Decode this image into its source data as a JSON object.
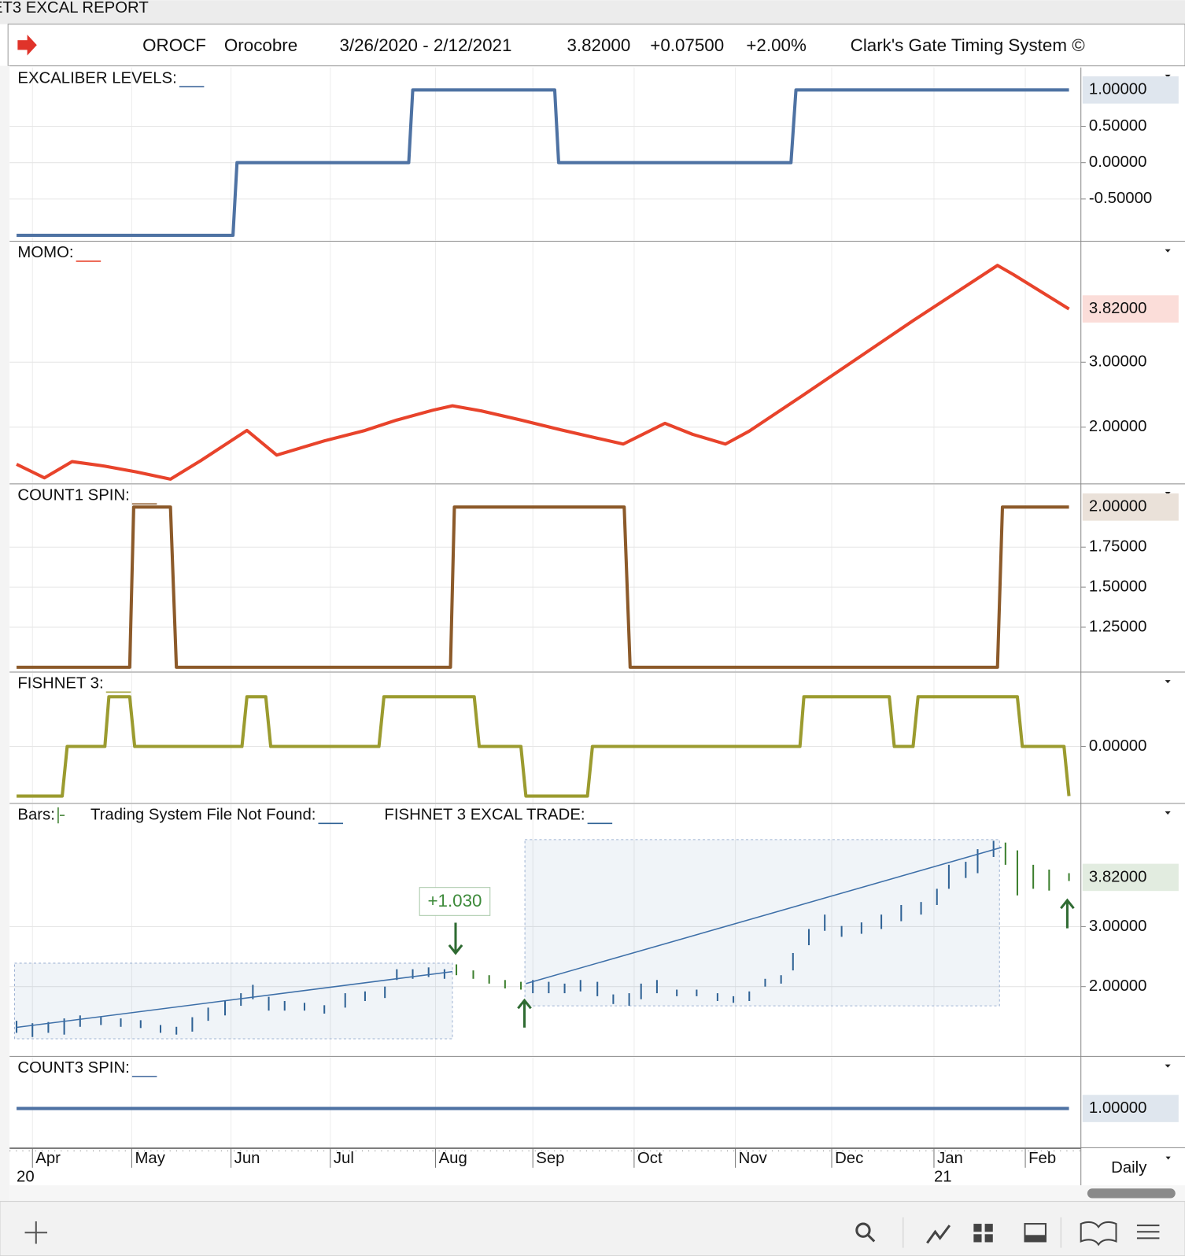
{
  "window_title": "ET3 EXCAL REPORT",
  "header": {
    "symbol": "OROCF",
    "name": "Orocobre",
    "date_range": "3/26/2020 - 2/12/2021",
    "last": "3.82000",
    "change": "+0.07500",
    "change_pct": "+2.00%",
    "system": "Clark's Gate Timing System ©"
  },
  "x_axis": {
    "xlim": [
      -0.23,
      10.56
    ],
    "xticks": [
      {
        "value": 0,
        "label": "Apr"
      },
      {
        "value": 1.0,
        "label": "May"
      },
      {
        "value": 2.0,
        "label": "Jun"
      },
      {
        "value": 3.0,
        "label": "Jul"
      },
      {
        "value": 4.06,
        "label": "Aug"
      },
      {
        "value": 5.04,
        "label": "Sep"
      },
      {
        "value": 6.06,
        "label": "Oct"
      },
      {
        "value": 7.08,
        "label": "Nov"
      },
      {
        "value": 8.05,
        "label": "Dec"
      },
      {
        "value": 9.08,
        "label": "Jan"
      },
      {
        "value": 10.0,
        "label": "Feb"
      }
    ],
    "years": [
      {
        "value": -0.16,
        "label": "20"
      },
      {
        "value": 9.08,
        "label": "21"
      }
    ],
    "interval": "Daily"
  },
  "chart_data": [
    {
      "type": "line",
      "titles": [
        "EXCALIBER LEVELS:"
      ],
      "ylim": [
        -1.07,
        1.31
      ],
      "yticks": [
        {
          "value": 0.5,
          "label": "0.50000"
        },
        {
          "value": 0,
          "label": "0.00000"
        },
        {
          "value": -0.5,
          "label": "-0.50000"
        }
      ],
      "series": [
        {
          "color": "#4e72a3",
          "x": [
            -0.16,
            2.02,
            2.06,
            3.79,
            3.83,
            5.26,
            5.3,
            7.64,
            7.69,
            10.44
          ],
          "values": [
            -1,
            -1,
            0,
            0,
            1,
            1,
            0,
            0,
            1,
            1
          ],
          "last_label": "1.00000"
        }
      ]
    },
    {
      "type": "line",
      "titles": [
        "MOMO:"
      ],
      "ylim": [
        1.14,
        4.85
      ],
      "yticks": [
        {
          "value": 3,
          "label": "3.00000"
        },
        {
          "value": 2,
          "label": "2.00000"
        }
      ],
      "series": [
        {
          "color": "#e8432b",
          "x": [
            -0.16,
            0.12,
            0.4,
            0.73,
            1.05,
            1.39,
            1.69,
            2.16,
            2.46,
            2.94,
            3.35,
            3.67,
            4.03,
            4.23,
            4.52,
            4.92,
            5.32,
            5.69,
            5.95,
            6.37,
            6.65,
            6.98,
            7.22,
            7.74,
            8.87,
            9.72,
            9.88,
            10.44
          ],
          "values": [
            1.43,
            1.22,
            1.47,
            1.4,
            1.31,
            1.2,
            1.48,
            1.95,
            1.57,
            1.79,
            1.95,
            2.11,
            2.26,
            2.33,
            2.25,
            2.11,
            1.96,
            1.83,
            1.74,
            2.06,
            1.89,
            1.74,
            1.94,
            2.47,
            3.64,
            4.49,
            4.35,
            3.82
          ],
          "last_label": "3.82000"
        }
      ]
    },
    {
      "type": "line",
      "titles": [
        "COUNT1 SPIN:"
      ],
      "ylim": [
        0.975,
        2.14
      ],
      "yticks": [
        {
          "value": 1.75,
          "label": "1.75000"
        },
        {
          "value": 1.5,
          "label": "1.50000"
        },
        {
          "value": 1.25,
          "label": "1.25000"
        }
      ],
      "series": [
        {
          "color": "#8c5a2a",
          "x": [
            -0.16,
            0.98,
            1.02,
            1.39,
            1.45,
            4.21,
            4.25,
            5.96,
            6.02,
            9.72,
            9.77,
            10.44
          ],
          "values": [
            1,
            1,
            2,
            2,
            1,
            1,
            2,
            2,
            1,
            1,
            2,
            2
          ],
          "last_label": "2.00000"
        }
      ]
    },
    {
      "type": "line",
      "titles": [
        "FISHNET 3:"
      ],
      "ylim": [
        -1.13,
        1.48
      ],
      "yticks": [
        {
          "value": 0,
          "label": "0.00000"
        }
      ],
      "series": [
        {
          "color": "#9b9b2f",
          "x": [
            -0.16,
            0.3,
            0.35,
            0.73,
            0.77,
            0.98,
            1.03,
            2.11,
            2.16,
            2.35,
            2.4,
            3.49,
            3.54,
            4.45,
            4.5,
            4.92,
            4.97,
            5.59,
            5.64,
            7.73,
            7.77,
            8.63,
            8.68,
            8.87,
            8.92,
            9.92,
            9.97,
            10.39,
            10.44
          ],
          "values": [
            -1,
            -1,
            0,
            0,
            1,
            1,
            0,
            0,
            1,
            1,
            0,
            0,
            1,
            1,
            0,
            0,
            -1,
            -1,
            0,
            0,
            1,
            1,
            0,
            0,
            1,
            1,
            0,
            0,
            -1
          ]
        }
      ]
    },
    {
      "type": "rangebar",
      "titles": [
        "Bars:",
        "Trading System File Not Found:",
        "FISHNET 3 EXCAL TRADE:"
      ],
      "ylim": [
        0.85,
        5.04
      ],
      "yticks": [
        {
          "value": 3,
          "label": "3.00000"
        },
        {
          "value": 2,
          "label": "2.00000"
        }
      ],
      "last_value": 3.82,
      "last_label": "3.82000",
      "annotation": "+1.030",
      "trend_color": "#3d6fa8",
      "trendlines": [
        {
          "x": [
            -0.16,
            4.23
          ],
          "values": [
            1.32,
            2.25
          ]
        },
        {
          "x": [
            4.97,
            9.76
          ],
          "values": [
            2.05,
            4.32
          ]
        }
      ],
      "channels": [
        {
          "x": [
            -0.18,
            4.23
          ],
          "values": [
            2.39,
            1.13
          ]
        },
        {
          "x": [
            4.96,
            9.74
          ],
          "values": [
            4.45,
            1.68
          ]
        }
      ],
      "series": [
        {
          "color": "#2f6295",
          "x": [
            -0.16,
            0,
            0.16,
            0.32,
            0.48,
            0.69,
            0.89,
            1.09,
            1.29,
            1.45,
            1.61,
            1.77,
            1.94,
            2.1,
            2.22,
            2.38,
            2.54,
            2.74,
            2.94,
            3.15,
            3.35,
            3.55,
            3.67,
            3.83,
            3.99,
            4.15
          ],
          "high": [
            1.43,
            1.39,
            1.41,
            1.47,
            1.52,
            1.49,
            1.47,
            1.44,
            1.36,
            1.33,
            1.49,
            1.65,
            1.76,
            1.89,
            2.03,
            1.83,
            1.76,
            1.73,
            1.69,
            1.89,
            1.92,
            2.0,
            2.29,
            2.29,
            2.32,
            2.29
          ],
          "low": [
            1.23,
            1.16,
            1.23,
            1.2,
            1.33,
            1.36,
            1.33,
            1.31,
            1.23,
            1.2,
            1.25,
            1.43,
            1.52,
            1.68,
            1.79,
            1.6,
            1.6,
            1.6,
            1.55,
            1.65,
            1.76,
            1.81,
            2.11,
            2.13,
            2.16,
            2.13
          ]
        },
        {
          "color": "#3c7f2e",
          "x": [
            4.27,
            4.44,
            4.6,
            4.76,
            4.92
          ],
          "high": [
            2.37,
            2.27,
            2.19,
            2.11,
            2.08
          ],
          "low": [
            2.19,
            2.13,
            2.05,
            1.97,
            1.95
          ]
        },
        {
          "color": "#2f6295",
          "x": [
            5.04,
            5.2,
            5.36,
            5.52,
            5.69,
            5.85,
            6.01,
            6.13,
            6.29,
            6.49,
            6.69,
            6.9,
            7.06,
            7.22,
            7.38,
            7.54,
            7.66,
            7.82,
            7.98,
            8.15,
            8.35,
            8.55,
            8.75,
            8.95,
            9.11,
            9.23,
            9.4,
            9.52,
            9.68
          ],
          "high": [
            2.11,
            2.08,
            2.05,
            2.11,
            2.08,
            1.87,
            1.89,
            2.05,
            2.11,
            1.95,
            1.95,
            1.89,
            1.84,
            1.92,
            2.13,
            2.19,
            2.56,
            2.96,
            3.2,
            3.01,
            3.07,
            3.2,
            3.36,
            3.41,
            3.63,
            4.03,
            4.08,
            4.29,
            4.43
          ],
          "low": [
            1.89,
            1.89,
            1.89,
            1.92,
            1.84,
            1.71,
            1.68,
            1.79,
            1.89,
            1.84,
            1.84,
            1.76,
            1.73,
            1.76,
            2.0,
            2.05,
            2.27,
            2.69,
            2.93,
            2.83,
            2.88,
            2.96,
            3.09,
            3.2,
            3.36,
            3.63,
            3.81,
            3.89,
            4.16
          ]
        },
        {
          "color": "#3c7f2e",
          "x": [
            9.8,
            9.92,
            10.08,
            10.24,
            10.44
          ],
          "high": [
            4.4,
            4.27,
            4.03,
            3.95,
            3.89
          ],
          "low": [
            4.03,
            3.52,
            3.63,
            3.6,
            3.76
          ]
        }
      ]
    },
    {
      "type": "line",
      "titles": [
        "COUNT3 SPIN:"
      ],
      "ylim": [
        0.625,
        1.5
      ],
      "yticks": [],
      "series": [
        {
          "color": "#4e72a3",
          "x": [
            -0.16,
            10.44
          ],
          "values": [
            1,
            1
          ],
          "last_label": "1.00000"
        }
      ]
    }
  ]
}
